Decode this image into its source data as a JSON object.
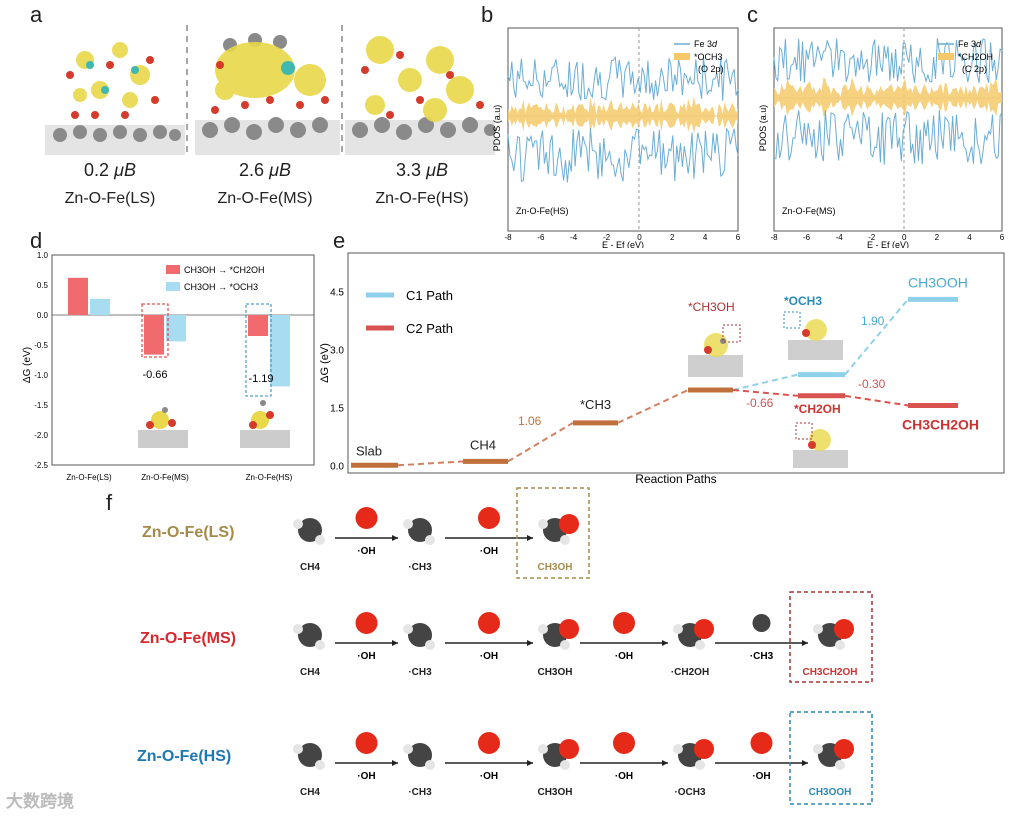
{
  "panel_letters": {
    "a": "a",
    "b": "b",
    "c": "c",
    "d": "d",
    "e": "e",
    "f": "f"
  },
  "colors": {
    "fe3d": "#6aaed6",
    "o2p_fill": "#f5c96a",
    "c1": "#8fd0ea",
    "c2": "#d9534f",
    "red_bar": "#f06a6e",
    "blue_bar": "#a8dcf0",
    "ls_title": "#a58a4a",
    "ms_title": "#d9282b",
    "hs_title": "#1f77b4",
    "struct_gray": "#8a8a8a",
    "struct_red": "#d43b2a",
    "struct_yellow": "#e8d84a"
  },
  "panel_a": {
    "structures": [
      {
        "moment": "0.2",
        "unit": "μB",
        "label": "Zn-O-Fe(LS)"
      },
      {
        "moment": "2.6",
        "unit": "μB",
        "label": "Zn-O-Fe(MS)"
      },
      {
        "moment": "3.3",
        "unit": "μB",
        "label": "Zn-O-Fe(HS)"
      }
    ]
  },
  "chart_data": [
    {
      "id": "b",
      "type": "line",
      "ylabel": "PDOS (a.u)",
      "xlabel": "E - Ef (eV)",
      "xlim": [
        -8,
        6
      ],
      "xticks": [
        "-8",
        "-6",
        "-4",
        "-2",
        "0",
        "2",
        "4",
        "6"
      ],
      "legend": [
        "Fe 3d",
        "*OCH3 (O 2p)"
      ],
      "legend_line2": "(O 2p)",
      "legend_line1a": "Fe 3",
      "legend_d": "d",
      "legend_och3": "*OCH3",
      "annotation": "Zn-O-Fe(HS)"
    },
    {
      "id": "c",
      "type": "line",
      "ylabel": "PDOS (a.u)",
      "xlabel": "E - Ef (eV)",
      "xlim": [
        -8,
        6
      ],
      "xticks": [
        "-8",
        "-6",
        "-4",
        "-2",
        "0",
        "2",
        "4",
        "6"
      ],
      "legend": [
        "Fe 3d",
        "*CH2OH (C 2p)"
      ],
      "legend_line2": "(C 2p)",
      "legend_line1a": "Fe 3",
      "legend_d": "d",
      "legend_ch2oh": "*CH2OH",
      "annotation": "Zn-O-Fe(MS)"
    },
    {
      "id": "d",
      "type": "bar",
      "ylabel": "ΔG (eV)",
      "ylim": [
        -2.5,
        1.0
      ],
      "yticks": [
        "1.0",
        "0.5",
        "0.0",
        "-0.5",
        "-1.0",
        "-1.5",
        "-2.0",
        "-2.5"
      ],
      "categories": [
        "Zn-O-Fe(LS)",
        "Zn-O-Fe(MS)",
        "Zn-O-Fe(HS)"
      ],
      "series": [
        {
          "name": "CH3OH → *CH2OH",
          "values": [
            0.62,
            -0.66,
            -0.35
          ]
        },
        {
          "name": "CH3OH → *OCH3",
          "values": [
            0.27,
            -0.44,
            -1.19
          ]
        }
      ],
      "labels": [
        "-0.66",
        "-1.19"
      ]
    },
    {
      "id": "e",
      "type": "line",
      "ylabel": "ΔG (eV)",
      "xlabel": "Reaction Paths",
      "ylim": [
        -0.2,
        5.5
      ],
      "yticks": [
        "0.0",
        "1.5",
        "3.0",
        "4.5"
      ],
      "legend": [
        "C1 Path",
        "C2 Path"
      ],
      "levels": [
        {
          "name": "Slab",
          "value": 0.0
        },
        {
          "name": "CH4",
          "value": 0.1
        },
        {
          "name": "*CH3",
          "value": 1.1
        },
        {
          "name": "*CH3OH",
          "value": 1.95
        },
        {
          "name": "*OCH3",
          "value": 2.35
        },
        {
          "name": "*CH2OH",
          "value": 1.8
        },
        {
          "name": "CH3OOH",
          "value": 4.3
        },
        {
          "name": "CH3CH2OH",
          "value": 1.55
        }
      ],
      "step_labels": {
        "ch3": "1.06",
        "och3": "1.90",
        "ch2oh": "-0.66",
        "c2": "-0.30"
      }
    }
  ],
  "panel_f": {
    "ls": {
      "title": "Zn-O-Fe(LS)",
      "steps": [
        "CH4",
        "·CH3",
        "CH3OH"
      ],
      "arrows": [
        "·OH",
        "·OH"
      ]
    },
    "ms": {
      "title": "Zn-O-Fe(MS)",
      "steps": [
        "CH4",
        "·CH3",
        "CH3OH",
        "·CH2OH",
        "CH3CH2OH"
      ],
      "arrows": [
        "·OH",
        "·OH",
        "·OH",
        "·CH3"
      ]
    },
    "hs": {
      "title": "Zn-O-Fe(HS)",
      "steps": [
        "CH4",
        "·CH3",
        "CH3OH",
        "·OCH3",
        "CH3OOH"
      ],
      "arrows": [
        "·OH",
        "·OH",
        "·OH",
        "·OH"
      ]
    }
  },
  "watermark": "大数跨境"
}
